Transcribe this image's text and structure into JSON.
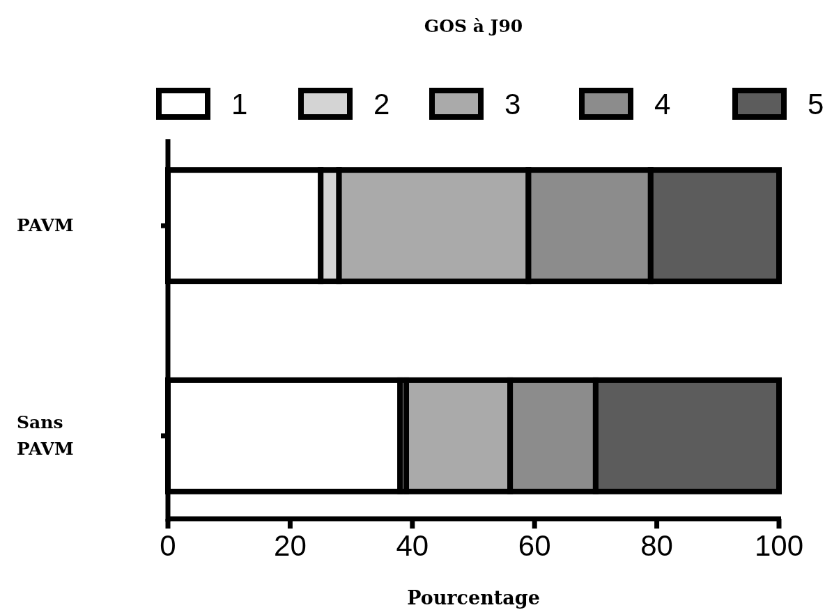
{
  "chart_data": {
    "type": "bar",
    "title": "GOS à J90",
    "xlabel": "Pourcentage",
    "orientation": "horizontal",
    "stacked": true,
    "categories": [
      "PAVM",
      "Sans PAVM"
    ],
    "series": [
      {
        "name": "1",
        "color": "#ffffff",
        "values": [
          25,
          38
        ]
      },
      {
        "name": "2",
        "color": "#d4d4d4",
        "values": [
          3,
          1
        ]
      },
      {
        "name": "3",
        "color": "#aaaaaa",
        "values": [
          31,
          17
        ]
      },
      {
        "name": "4",
        "color": "#8c8c8c",
        "values": [
          20,
          14
        ]
      },
      {
        "name": "5",
        "color": "#5c5c5c",
        "values": [
          21,
          30
        ]
      }
    ],
    "xlim": [
      0,
      100
    ],
    "xticks": [
      0,
      20,
      40,
      60,
      80,
      100
    ],
    "legend": "top",
    "grid": false
  }
}
